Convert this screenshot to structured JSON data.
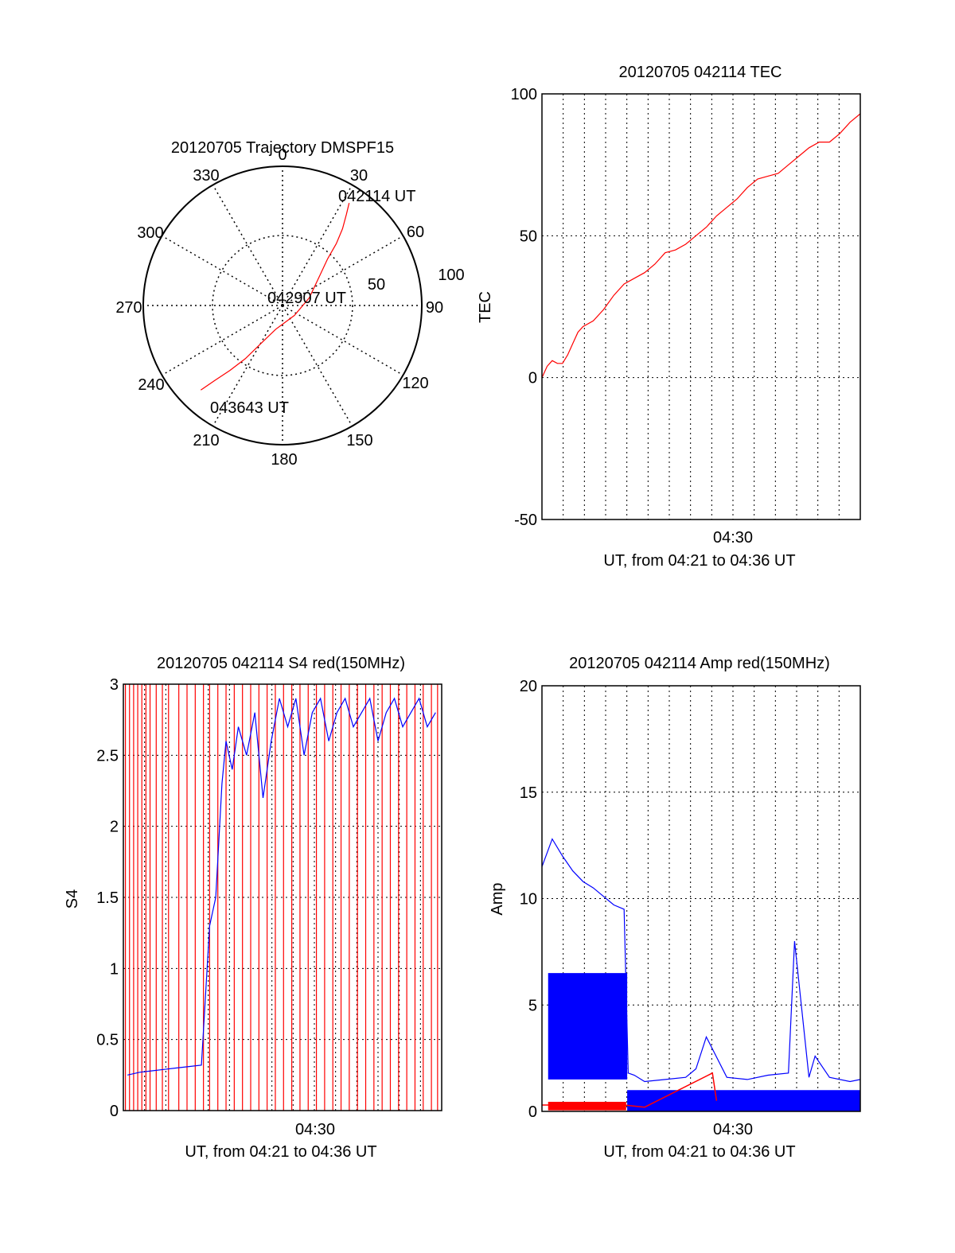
{
  "chart_data": [
    {
      "type": "polar",
      "title": "20120705 Trajectory DMSPF15",
      "angle_ticks": [
        "0",
        "30",
        "60",
        "90",
        "120",
        "150",
        "180",
        "210",
        "240",
        "270",
        "300",
        "330"
      ],
      "radial_ticks": [
        "50",
        "100"
      ],
      "series": [
        {
          "color": "#ff0000",
          "points": [
            {
              "az": 33,
              "el": 11
            },
            {
              "az": 35,
              "el": 18
            },
            {
              "az": 38,
              "el": 27
            },
            {
              "az": 41,
              "el": 37
            },
            {
              "az": 44,
              "el": 48
            },
            {
              "az": 52,
              "el": 60
            },
            {
              "az": 74,
              "el": 72
            },
            {
              "az": 130,
              "el": 80
            },
            {
              "az": 196,
              "el": 74
            },
            {
              "az": 210,
              "el": 61
            },
            {
              "az": 215,
              "el": 48
            },
            {
              "az": 219,
              "el": 36
            },
            {
              "az": 222,
              "el": 25
            },
            {
              "az": 224,
              "el": 14
            }
          ]
        }
      ],
      "annotations": [
        {
          "text": "042114 UT",
          "az": 33,
          "el": 11
        },
        {
          "text": "042907 UT",
          "az": 130,
          "el": 80
        },
        {
          "text": "043643 UT",
          "az": 224,
          "el": 14
        }
      ]
    },
    {
      "type": "line",
      "title": "20120705 042114 TEC",
      "ylabel": "TEC",
      "xlabel": "UT, from 04:21 to 04:36 UT",
      "xtick_labels": [
        "04:30"
      ],
      "xlim": [
        0,
        15.5
      ],
      "ylim": [
        -50,
        100
      ],
      "yticks": [
        "100",
        "50",
        "0",
        "-50"
      ],
      "grid": true,
      "series": [
        {
          "color": "#ff0000",
          "x": [
            0,
            0.25,
            0.5,
            0.75,
            1.0,
            1.25,
            1.5,
            1.75,
            2.0,
            2.5,
            3.0,
            3.5,
            4.0,
            4.5,
            5.0,
            5.5,
            6.0,
            6.5,
            7.0,
            7.5,
            8.0,
            8.5,
            9.0,
            9.5,
            10.0,
            10.5,
            11.0,
            11.5,
            12.0,
            12.5,
            13.0,
            13.5,
            14.0,
            14.5,
            15.0,
            15.5
          ],
          "y": [
            0,
            4,
            6,
            5,
            5,
            8,
            12,
            16,
            18,
            20,
            24,
            29,
            33,
            35,
            37,
            40,
            44,
            45,
            47,
            50,
            53,
            57,
            60,
            63,
            67,
            70,
            71,
            72,
            75,
            78,
            81,
            83,
            83,
            86,
            90,
            93
          ]
        }
      ]
    },
    {
      "type": "line",
      "title": "20120705 042114 S4 red(150MHz)",
      "ylabel": "S4",
      "xlabel": "UT, from 04:21 to 04:36 UT",
      "xtick_labels": [
        "04:30"
      ],
      "xlim": [
        0,
        15.5
      ],
      "ylim": [
        0,
        3
      ],
      "yticks": [
        "3",
        "2.5",
        "2",
        "1.5",
        "1",
        "0.5",
        "0"
      ],
      "grid": true,
      "series": [
        {
          "color": "#ff0000",
          "x": [
            0.1,
            0.3,
            0.5,
            0.7,
            0.9,
            1.1,
            1.3,
            1.6,
            1.9,
            2.2,
            2.7,
            3.1,
            3.5,
            3.9,
            4.2,
            4.6,
            5.0,
            5.4,
            5.8,
            6.2,
            6.6,
            7.0,
            7.4,
            7.8,
            8.2,
            8.6,
            9.0,
            9.4,
            9.8,
            10.2,
            10.6,
            11.0,
            11.4,
            11.8,
            12.2,
            12.6,
            13.0,
            13.4,
            13.8,
            14.2,
            14.6,
            15.0,
            15.3
          ],
          "y": [
            3,
            3,
            3,
            3,
            3,
            3,
            3,
            3,
            3,
            3,
            3,
            3,
            3,
            3,
            3,
            3,
            3,
            3,
            3,
            3,
            3,
            3,
            3,
            3,
            3,
            3,
            3,
            3,
            3,
            3,
            3,
            3,
            3,
            3,
            3,
            3,
            3,
            3,
            3,
            3,
            3,
            3,
            3
          ]
        },
        {
          "color": "#0000ff",
          "x": [
            0.2,
            0.8,
            1.4,
            2.0,
            2.6,
            3.2,
            3.8,
            4.2,
            4.5,
            4.8,
            5.0,
            5.3,
            5.6,
            6.0,
            6.4,
            6.8,
            7.2,
            7.6,
            8.0,
            8.4,
            8.8,
            9.2,
            9.6,
            10.0,
            10.4,
            10.8,
            11.2,
            11.6,
            12.0,
            12.4,
            12.8,
            13.2,
            13.6,
            14.0,
            14.4,
            14.8,
            15.2
          ],
          "y": [
            0.25,
            0.27,
            0.28,
            0.29,
            0.3,
            0.31,
            0.32,
            1.3,
            1.5,
            2.3,
            2.6,
            2.4,
            2.7,
            2.5,
            2.8,
            2.2,
            2.6,
            2.9,
            2.7,
            2.9,
            2.5,
            2.8,
            2.9,
            2.6,
            2.8,
            2.9,
            2.7,
            2.8,
            2.9,
            2.6,
            2.8,
            2.9,
            2.7,
            2.8,
            2.9,
            2.7,
            2.8
          ]
        }
      ]
    },
    {
      "type": "line",
      "title": "20120705 042114 Amp red(150MHz)",
      "ylabel": "Amp",
      "xlabel": "UT, from 04:21 to 04:36 UT",
      "xtick_labels": [
        "04:30"
      ],
      "xlim": [
        0,
        15.5
      ],
      "ylim": [
        0,
        20
      ],
      "yticks": [
        "20",
        "15",
        "10",
        "5",
        "0"
      ],
      "grid": true,
      "series": [
        {
          "color": "#ff0000",
          "x": [
            0,
            1,
            2,
            3,
            4,
            5,
            8.3,
            8.5
          ],
          "y": [
            0.3,
            0.3,
            0.3,
            0.3,
            0.3,
            0.2,
            1.8,
            0.5
          ]
        },
        {
          "color": "#0000ff",
          "x": [
            0,
            0.5,
            1.0,
            1.5,
            2.0,
            2.5,
            3.0,
            3.5,
            4.0,
            4.2,
            4.5,
            5.0,
            6.0,
            7.0,
            7.5,
            8.0,
            9.0,
            10.0,
            11.0,
            12.0,
            12.3,
            13.0,
            13.3,
            14.0,
            15.0,
            15.5
          ],
          "y": [
            11.5,
            12.8,
            12.0,
            11.3,
            10.8,
            10.5,
            10.1,
            9.7,
            9.5,
            1.8,
            1.7,
            1.4,
            1.5,
            1.6,
            2.0,
            3.5,
            1.6,
            1.5,
            1.7,
            1.8,
            8.0,
            1.6,
            2.6,
            1.6,
            1.4,
            1.5
          ]
        }
      ]
    }
  ]
}
